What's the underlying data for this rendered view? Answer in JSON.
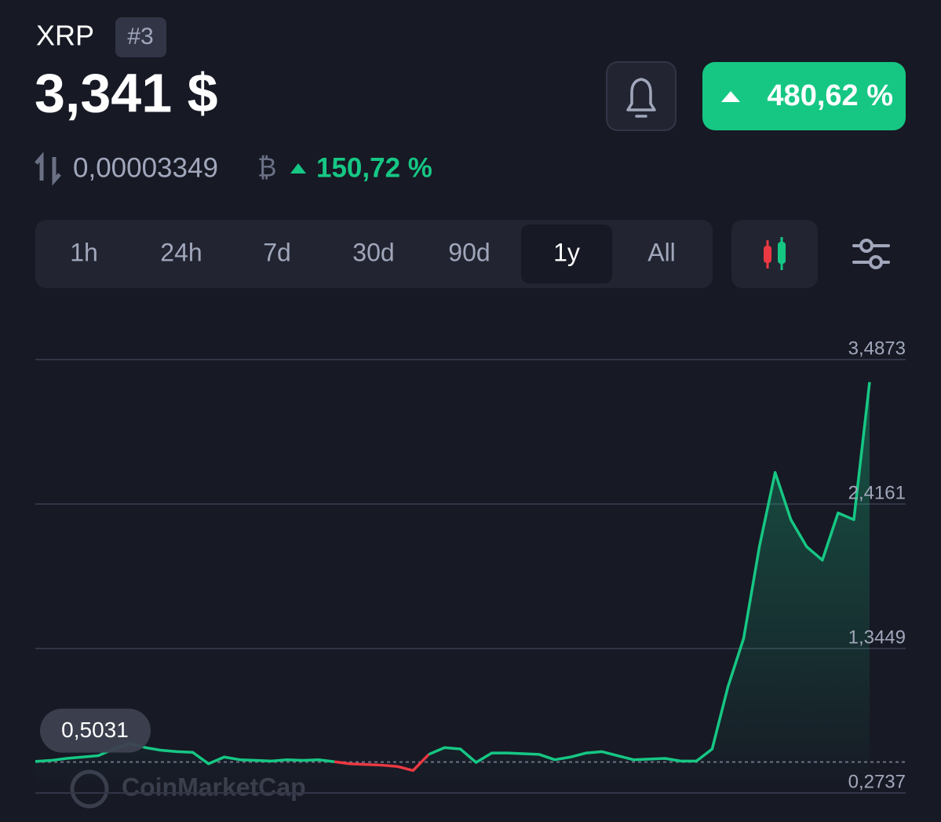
{
  "header": {
    "symbol": "XRP",
    "rank": "#3",
    "price": "3,341 $",
    "change": "480,62 %",
    "btc_price": "0,00003349",
    "btc_symbol": "₿",
    "btc_change": "150,72 %"
  },
  "tabs": [
    "1h",
    "24h",
    "7d",
    "30d",
    "90d",
    "1y",
    "All"
  ],
  "active_tab": 5,
  "watermark": "CoinMarketCap",
  "chart_data": {
    "type": "line",
    "values": [
      0.507,
      0.515,
      0.53,
      0.54,
      0.55,
      0.6,
      0.64,
      0.61,
      0.59,
      0.58,
      0.575,
      0.49,
      0.54,
      0.52,
      0.515,
      0.51,
      0.52,
      0.515,
      0.52,
      0.505,
      0.49,
      0.485,
      0.48,
      0.47,
      0.44,
      0.56,
      0.61,
      0.6,
      0.5,
      0.57,
      0.57,
      0.565,
      0.56,
      0.52,
      0.54,
      0.57,
      0.58,
      0.55,
      0.52,
      0.525,
      0.53,
      0.51,
      0.51,
      0.6,
      1.06,
      1.42,
      2.1,
      2.65,
      2.3,
      2.1,
      2.0,
      2.35,
      2.3,
      3.32
    ],
    "color": "#16c784",
    "down_color": "#ea3943",
    "reference": {
      "value": 0.5031,
      "label": "0,5031"
    },
    "ylim": [
      0.2737,
      3.4873
    ],
    "yticks": [
      {
        "value": 0.2737,
        "label": "0,2737"
      },
      {
        "value": 1.3449,
        "label": "1,3449"
      },
      {
        "value": 2.4161,
        "label": "2,4161"
      },
      {
        "value": 3.4873,
        "label": "3,4873"
      }
    ],
    "grid": true
  }
}
